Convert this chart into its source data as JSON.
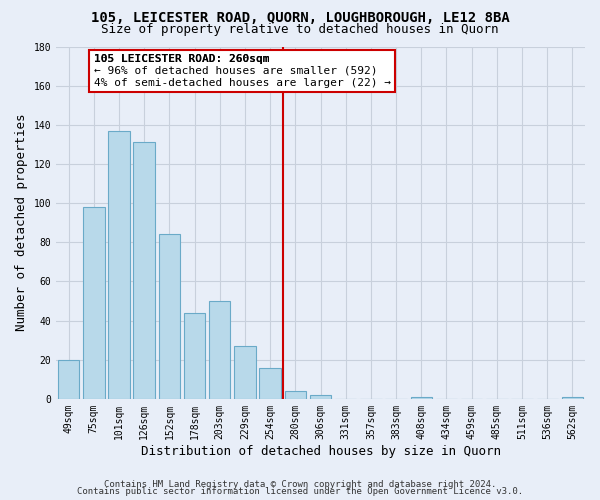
{
  "title": "105, LEICESTER ROAD, QUORN, LOUGHBOROUGH, LE12 8BA",
  "subtitle": "Size of property relative to detached houses in Quorn",
  "xlabel": "Distribution of detached houses by size in Quorn",
  "ylabel": "Number of detached properties",
  "categories": [
    "49sqm",
    "75sqm",
    "101sqm",
    "126sqm",
    "152sqm",
    "178sqm",
    "203sqm",
    "229sqm",
    "254sqm",
    "280sqm",
    "306sqm",
    "331sqm",
    "357sqm",
    "383sqm",
    "408sqm",
    "434sqm",
    "459sqm",
    "485sqm",
    "511sqm",
    "536sqm",
    "562sqm"
  ],
  "values": [
    20,
    98,
    137,
    131,
    84,
    44,
    50,
    27,
    16,
    4,
    2,
    0,
    0,
    0,
    1,
    0,
    0,
    0,
    0,
    0,
    1
  ],
  "bar_color": "#b8d9ea",
  "bar_edge_color": "#6aaac8",
  "vline_color": "#cc0000",
  "annotation_title": "105 LEICESTER ROAD: 260sqm",
  "annotation_line1": "← 96% of detached houses are smaller (592)",
  "annotation_line2": "4% of semi-detached houses are larger (22) →",
  "annotation_box_facecolor": "#ffffff",
  "annotation_box_edgecolor": "#cc0000",
  "ylim": [
    0,
    180
  ],
  "yticks": [
    0,
    20,
    40,
    60,
    80,
    100,
    120,
    140,
    160,
    180
  ],
  "footer1": "Contains HM Land Registry data © Crown copyright and database right 2024.",
  "footer2": "Contains public sector information licensed under the Open Government Licence v3.0.",
  "plot_bg_color": "#e8eef8",
  "fig_bg_color": "#e8eef8",
  "grid_color": "#c8d0dc",
  "title_fontsize": 10,
  "subtitle_fontsize": 9,
  "label_fontsize": 9,
  "tick_fontsize": 7,
  "annotation_fontsize": 8,
  "footer_fontsize": 6.5
}
